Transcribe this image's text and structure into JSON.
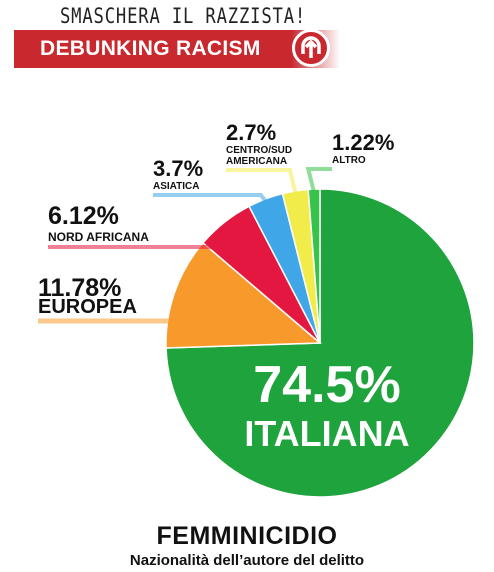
{
  "header": {
    "tagline": "SMASCHERA IL RAZZISTA!",
    "banner_label": "DEBUNKING RACISM",
    "banner_icon": "upward-arrow-logo-icon",
    "banner_color": "#c8282e"
  },
  "chart_data": {
    "type": "pie",
    "title": "FEMMINICIDIO",
    "subtitle": "Nazionalità dell’autore del delitto",
    "slices": [
      {
        "label": "ITALIANA",
        "value": 74.5,
        "display": "74.5%",
        "color": "#1fa33c"
      },
      {
        "label": "EUROPEA",
        "value": 11.78,
        "display": "11.78%",
        "color": "#f79a2b"
      },
      {
        "label": "NORD AFRICANA",
        "value": 6.12,
        "display": "6.12%",
        "color": "#e3173f"
      },
      {
        "label": "ASIATICA",
        "value": 3.7,
        "display": "3.7%",
        "color": "#3fa6e8"
      },
      {
        "label": "CENTRO/SUD\nAMERICANA",
        "value": 2.7,
        "display": "2.7%",
        "color": "#f2ec4a"
      },
      {
        "label": "ALTRO",
        "value": 1.22,
        "display": "1.22%",
        "color": "#37c24a"
      }
    ],
    "legend": "none"
  }
}
